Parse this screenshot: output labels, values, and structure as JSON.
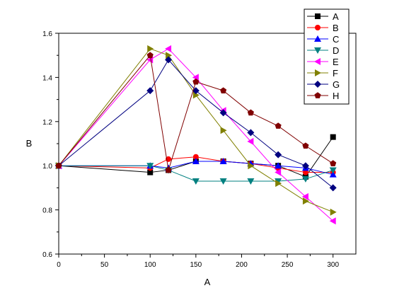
{
  "chart_data": {
    "type": "line",
    "xlabel": "A",
    "ylabel": "B",
    "xlim": [
      0,
      325
    ],
    "ylim": [
      0.6,
      1.6
    ],
    "xticks": [
      0,
      50,
      100,
      150,
      200,
      250,
      300
    ],
    "yticks": [
      0.6,
      0.8,
      1.0,
      1.2,
      1.4,
      1.6
    ],
    "xtick_labels": [
      "0",
      "50",
      "100",
      "150",
      "200",
      "250",
      "300"
    ],
    "ytick_labels": [
      "0.6",
      "0.8",
      "1.0",
      "1.2",
      "1.4",
      "1.6"
    ],
    "grid": false,
    "legend_position": "top-right",
    "x": [
      0,
      100,
      120,
      150,
      180,
      210,
      240,
      270,
      300
    ],
    "series": [
      {
        "name": "A",
        "color": "#000000",
        "marker": "square",
        "values": [
          1.0,
          0.97,
          0.98,
          1.02,
          1.02,
          1.01,
          1.0,
          0.95,
          1.13
        ]
      },
      {
        "name": "B",
        "color": "#ff0000",
        "marker": "circle",
        "values": [
          1.0,
          0.99,
          1.03,
          1.04,
          1.02,
          1.01,
          0.99,
          0.97,
          0.97
        ]
      },
      {
        "name": "C",
        "color": "#0000ff",
        "marker": "triangle-up",
        "values": [
          1.0,
          1.0,
          0.99,
          1.02,
          1.02,
          1.01,
          1.0,
          0.99,
          0.96
        ]
      },
      {
        "name": "D",
        "color": "#008080",
        "marker": "triangle-down",
        "values": [
          1.0,
          1.0,
          0.98,
          0.93,
          0.93,
          0.93,
          0.93,
          0.94,
          0.98
        ]
      },
      {
        "name": "E",
        "color": "#ff00ff",
        "marker": "triangle-left",
        "values": [
          1.0,
          1.48,
          1.53,
          1.4,
          1.25,
          1.11,
          0.97,
          0.86,
          0.75
        ]
      },
      {
        "name": "F",
        "color": "#808000",
        "marker": "triangle-right",
        "values": [
          1.0,
          1.53,
          1.5,
          1.32,
          1.16,
          1.0,
          0.92,
          0.84,
          0.79
        ]
      },
      {
        "name": "G",
        "color": "#000080",
        "marker": "diamond",
        "values": [
          1.0,
          1.34,
          1.48,
          1.34,
          1.24,
          1.15,
          1.05,
          1.0,
          0.9
        ]
      },
      {
        "name": "H",
        "color": "#800000",
        "marker": "pentagon",
        "values": [
          1.0,
          1.5,
          0.98,
          1.38,
          1.34,
          1.24,
          1.18,
          1.09,
          1.01
        ]
      }
    ]
  }
}
